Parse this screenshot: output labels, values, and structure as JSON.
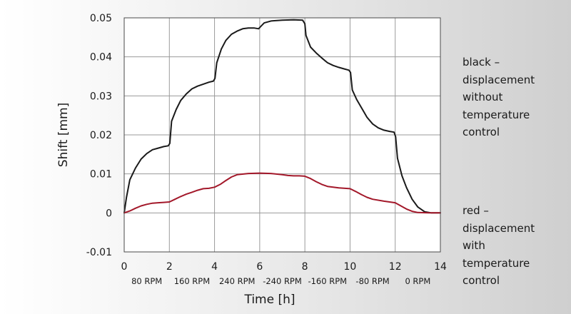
{
  "chart_data": {
    "type": "line",
    "xlabel": "Time [h]",
    "ylabel": "Shift [mm]",
    "xlim": [
      0,
      14
    ],
    "ylim": [
      -0.01,
      0.05
    ],
    "grid": true,
    "x_ticks": [
      "0",
      "2",
      "4",
      "6",
      "8",
      "10",
      "12",
      "14"
    ],
    "y_ticks": [
      "0.05",
      "0.04",
      "0.03",
      "0.02",
      "0.01",
      "0",
      "-0.01"
    ],
    "rpm_labels": [
      {
        "x": 1,
        "label": "80 RPM"
      },
      {
        "x": 3,
        "label": "160 RPM"
      },
      {
        "x": 5,
        "label": "240 RPM"
      },
      {
        "x": 7,
        "label": "-240 RPM"
      },
      {
        "x": 9,
        "label": "-160 RPM"
      },
      {
        "x": 11,
        "label": "-80 RPM"
      },
      {
        "x": 13,
        "label": "0 RPM"
      }
    ],
    "legend_placement": "right",
    "series": [
      {
        "name": "black – displacement without temperature control",
        "color": "#1a1a1a",
        "points": [
          [
            0,
            0
          ],
          [
            0.1,
            0.004
          ],
          [
            0.25,
            0.0085
          ],
          [
            0.5,
            0.0115
          ],
          [
            0.75,
            0.0138
          ],
          [
            1.0,
            0.0152
          ],
          [
            1.25,
            0.0162
          ],
          [
            1.5,
            0.0166
          ],
          [
            1.75,
            0.017
          ],
          [
            1.95,
            0.0172
          ],
          [
            2.02,
            0.0178
          ],
          [
            2.1,
            0.0235
          ],
          [
            2.3,
            0.0265
          ],
          [
            2.5,
            0.0288
          ],
          [
            2.75,
            0.0305
          ],
          [
            3.0,
            0.0318
          ],
          [
            3.25,
            0.0325
          ],
          [
            3.5,
            0.033
          ],
          [
            3.75,
            0.0335
          ],
          [
            3.95,
            0.0338
          ],
          [
            4.02,
            0.0345
          ],
          [
            4.1,
            0.0385
          ],
          [
            4.3,
            0.042
          ],
          [
            4.5,
            0.0442
          ],
          [
            4.75,
            0.0458
          ],
          [
            5.0,
            0.0466
          ],
          [
            5.25,
            0.0472
          ],
          [
            5.5,
            0.0474
          ],
          [
            5.75,
            0.0474
          ],
          [
            5.95,
            0.0472
          ],
          [
            6.05,
            0.0478
          ],
          [
            6.2,
            0.0487
          ],
          [
            6.5,
            0.0492
          ],
          [
            7.0,
            0.0494
          ],
          [
            7.5,
            0.0495
          ],
          [
            7.9,
            0.0494
          ],
          [
            8.0,
            0.0485
          ],
          [
            8.05,
            0.0455
          ],
          [
            8.25,
            0.0425
          ],
          [
            8.5,
            0.041
          ],
          [
            8.75,
            0.0397
          ],
          [
            9.0,
            0.0385
          ],
          [
            9.25,
            0.0378
          ],
          [
            9.5,
            0.0373
          ],
          [
            9.75,
            0.0369
          ],
          [
            9.95,
            0.0366
          ],
          [
            10.02,
            0.036
          ],
          [
            10.1,
            0.0315
          ],
          [
            10.3,
            0.029
          ],
          [
            10.5,
            0.027
          ],
          [
            10.75,
            0.0245
          ],
          [
            11.0,
            0.0228
          ],
          [
            11.25,
            0.0218
          ],
          [
            11.5,
            0.0212
          ],
          [
            11.75,
            0.0209
          ],
          [
            11.95,
            0.0207
          ],
          [
            12.02,
            0.0195
          ],
          [
            12.1,
            0.014
          ],
          [
            12.3,
            0.0095
          ],
          [
            12.5,
            0.0065
          ],
          [
            12.75,
            0.0035
          ],
          [
            13.0,
            0.0015
          ],
          [
            13.3,
            0.0003
          ],
          [
            13.6,
            0.0
          ],
          [
            14.0,
            0.0
          ]
        ]
      },
      {
        "name": "red – displacement with temperature control",
        "color": "#a3182a",
        "points": [
          [
            0,
            0
          ],
          [
            0.25,
            0.0005
          ],
          [
            0.5,
            0.0012
          ],
          [
            0.75,
            0.0018
          ],
          [
            1.0,
            0.0022
          ],
          [
            1.25,
            0.0025
          ],
          [
            1.5,
            0.0026
          ],
          [
            1.75,
            0.0027
          ],
          [
            2.0,
            0.0028
          ],
          [
            2.25,
            0.0035
          ],
          [
            2.5,
            0.0042
          ],
          [
            2.75,
            0.0048
          ],
          [
            3.0,
            0.0053
          ],
          [
            3.25,
            0.0058
          ],
          [
            3.5,
            0.0062
          ],
          [
            3.75,
            0.0063
          ],
          [
            4.0,
            0.0066
          ],
          [
            4.25,
            0.0073
          ],
          [
            4.5,
            0.0083
          ],
          [
            4.75,
            0.0092
          ],
          [
            5.0,
            0.0098
          ],
          [
            5.5,
            0.0101
          ],
          [
            6.0,
            0.0102
          ],
          [
            6.5,
            0.0101
          ],
          [
            7.0,
            0.0098
          ],
          [
            7.25,
            0.0096
          ],
          [
            7.5,
            0.0095
          ],
          [
            7.75,
            0.0095
          ],
          [
            8.0,
            0.0094
          ],
          [
            8.25,
            0.0088
          ],
          [
            8.5,
            0.008
          ],
          [
            8.75,
            0.0073
          ],
          [
            9.0,
            0.0068
          ],
          [
            9.5,
            0.0064
          ],
          [
            10.0,
            0.0062
          ],
          [
            10.25,
            0.0055
          ],
          [
            10.5,
            0.0047
          ],
          [
            10.75,
            0.004
          ],
          [
            11.0,
            0.0035
          ],
          [
            11.5,
            0.003
          ],
          [
            12.0,
            0.0026
          ],
          [
            12.25,
            0.0018
          ],
          [
            12.5,
            0.001
          ],
          [
            12.75,
            0.0004
          ],
          [
            13.0,
            0.0001
          ],
          [
            13.5,
            0.0
          ],
          [
            14.0,
            0.0
          ]
        ]
      }
    ]
  },
  "legend": {
    "black_text": "black –\ndisplacement\nwithout\ntemperature\ncontrol",
    "red_text": "red –\ndisplacement\nwith\ntemperature\ncontrol"
  }
}
